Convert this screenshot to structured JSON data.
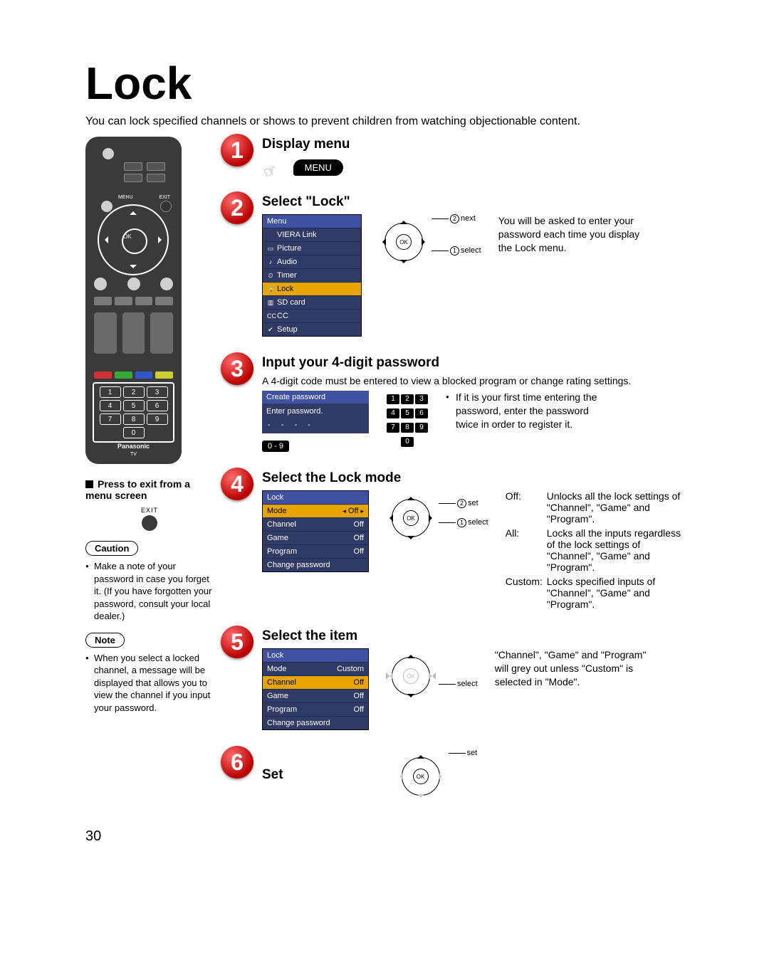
{
  "page": {
    "title": "Lock",
    "intro": "You can lock specified channels or shows to prevent children from watching objectionable content.",
    "number": "30"
  },
  "remote": {
    "menu_label": "MENU",
    "exit_label": "EXIT",
    "ok_label": "OK",
    "keys": [
      "1",
      "2",
      "3",
      "4",
      "5",
      "6",
      "7",
      "8",
      "9",
      "0"
    ],
    "brand": "Panasonic",
    "brand_sub": "TV",
    "color_bar": [
      "#cc3333",
      "#33aa33",
      "#3355cc",
      "#cccc33"
    ]
  },
  "side": {
    "exit_heading": "Press to exit from a menu screen",
    "exit_label": "EXIT",
    "caution_label": "Caution",
    "caution_text": "Make a note of your password in case you forget it. (If you have forgotten your password, consult your local dealer.)",
    "note_label": "Note",
    "note_text": "When you select a locked channel, a message will be displayed that allows you to view the channel if you input your password."
  },
  "steps": {
    "s1": {
      "num": "1",
      "title": "Display menu",
      "btn": "MENU"
    },
    "s2": {
      "num": "2",
      "title": "Select \"Lock\"",
      "menu_header": "Menu",
      "menu_items": [
        "VIERA Link",
        "Picture",
        "Audio",
        "Timer",
        "Lock",
        "SD card",
        "CC",
        "Setup"
      ],
      "menu_icons": [
        "",
        "▭",
        "♪",
        "⏲",
        "🔒",
        "▥",
        "CC",
        "✔"
      ],
      "nav1": "next",
      "nav2": "select",
      "note": "You will be asked to enter your password each time you display the Lock menu."
    },
    "s3": {
      "num": "3",
      "title": "Input your 4-digit password",
      "sub": "A 4-digit code must be entered to view a blocked program or change rating settings.",
      "osd_header": "Create password",
      "osd_line": "Enter password.",
      "osd_dots": "-  -  -  -",
      "range": "0 - 9",
      "keys": [
        "1",
        "2",
        "3",
        "4",
        "5",
        "6",
        "7",
        "8",
        "9",
        "0"
      ],
      "note": "If it is your first time entering the password, enter the password twice in order to register it."
    },
    "s4": {
      "num": "4",
      "title": "Select the Lock mode",
      "osd_header": "Lock",
      "rows": [
        {
          "k": "Mode",
          "v": "Off",
          "sel": true,
          "arrows": true
        },
        {
          "k": "Channel",
          "v": "Off"
        },
        {
          "k": "Game",
          "v": "Off"
        },
        {
          "k": "Program",
          "v": "Off"
        },
        {
          "k": "Change password",
          "v": ""
        }
      ],
      "nav1": "set",
      "nav2": "select",
      "defs": {
        "Off:": "Unlocks all the lock settings of \"Channel\", \"Game\" and \"Program\".",
        "All:": "Locks all the inputs regardless of the lock settings of \"Channel\", \"Game\" and \"Program\".",
        "Custom:": "Locks specified inputs of \"Channel\", \"Game\" and \"Program\"."
      }
    },
    "s5": {
      "num": "5",
      "title": "Select the item",
      "osd_header": "Lock",
      "rows": [
        {
          "k": "Mode",
          "v": "Custom"
        },
        {
          "k": "Channel",
          "v": "Off",
          "sel": true
        },
        {
          "k": "Game",
          "v": "Off"
        },
        {
          "k": "Program",
          "v": "Off"
        },
        {
          "k": "Change password",
          "v": ""
        }
      ],
      "nav": "select",
      "note": "\"Channel\", \"Game\" and \"Program\" will grey out unless \"Custom\" is selected in \"Mode\"."
    },
    "s6": {
      "num": "6",
      "title": "Set",
      "nav": "set"
    }
  }
}
